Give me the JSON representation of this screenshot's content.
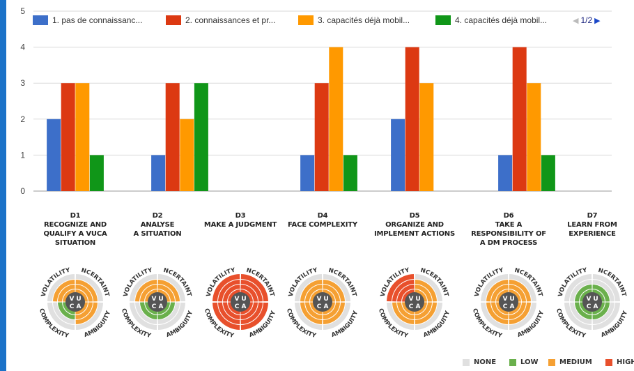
{
  "chart_data": {
    "type": "bar",
    "categories": [
      "D1",
      "D2",
      "D3",
      "D4",
      "D5",
      "D6",
      "D7"
    ],
    "series": [
      {
        "name": "1. pas de connaissanc...",
        "color": "#3d6fc9",
        "values": [
          2,
          1,
          0,
          1,
          2,
          1,
          0
        ]
      },
      {
        "name": "2. connaissances et pr...",
        "color": "#dc3912",
        "values": [
          3,
          3,
          0,
          3,
          4,
          4,
          0
        ]
      },
      {
        "name": "3. capacités déjà mobil...",
        "color": "#ff9900",
        "values": [
          3,
          2,
          0,
          4,
          3,
          3,
          0
        ]
      },
      {
        "name": "4. capacités déjà mobil...",
        "color": "#109618",
        "values": [
          1,
          3,
          0,
          1,
          0,
          1,
          0
        ]
      }
    ],
    "ylim": [
      0,
      5
    ],
    "yticks": [
      0,
      1,
      2,
      3,
      4,
      5
    ],
    "grid": true,
    "legend_position": "top",
    "legend_page": "1/2"
  },
  "dimensions": [
    {
      "code": "D1",
      "lines": [
        "RECOGNIZE AND",
        "QUALIFY A VUCA",
        "SITUATION"
      ]
    },
    {
      "code": "D2",
      "lines": [
        "ANALYSE",
        "A SITUATION"
      ]
    },
    {
      "code": "D3",
      "lines": [
        "MAKE A JUDGMENT"
      ]
    },
    {
      "code": "D4",
      "lines": [
        "FACE COMPLEXITY"
      ]
    },
    {
      "code": "D5",
      "lines": [
        "ORGANIZE AND",
        "IMPLEMENT ACTIONS"
      ]
    },
    {
      "code": "D6",
      "lines": [
        "TAKE A",
        "RESPONSIBILITY OF",
        "A DM PROCESS"
      ]
    },
    {
      "code": "D7",
      "lines": [
        "LEARN FROM",
        "EXPERIENCE"
      ]
    }
  ],
  "radial": {
    "quadrant_labels": [
      "VOLATILITY",
      "UNCERTAINTY",
      "COMPLEXITY",
      "AMBIGUITY"
    ],
    "center_letters": [
      "V",
      "U",
      "C",
      "A"
    ],
    "levels": [
      {
        "V": "medium",
        "U": "medium",
        "C": "low",
        "A": "medium"
      },
      {
        "V": "medium",
        "U": "medium",
        "C": "low",
        "A": "low"
      },
      {
        "V": "high",
        "U": "high",
        "C": "high",
        "A": "high"
      },
      {
        "V": "medium",
        "U": "medium",
        "C": "medium",
        "A": "medium"
      },
      {
        "V": "high",
        "U": "medium",
        "C": "medium",
        "A": "medium"
      },
      {
        "V": "medium",
        "U": "medium",
        "C": "medium",
        "A": "medium"
      },
      {
        "V": "low",
        "U": "low",
        "C": "low",
        "A": "low"
      }
    ],
    "level_colors": {
      "none": "#e0e0e0",
      "low": "#6ab04c",
      "medium": "#f5a033",
      "high": "#e8502c"
    }
  },
  "bottom_legend": [
    {
      "label": "NONE",
      "color": "#e0e0e0"
    },
    {
      "label": "LOW",
      "color": "#6ab04c"
    },
    {
      "label": "MEDIUM",
      "color": "#f5a033"
    },
    {
      "label": "HIGH",
      "color": "#e8502c"
    }
  ]
}
